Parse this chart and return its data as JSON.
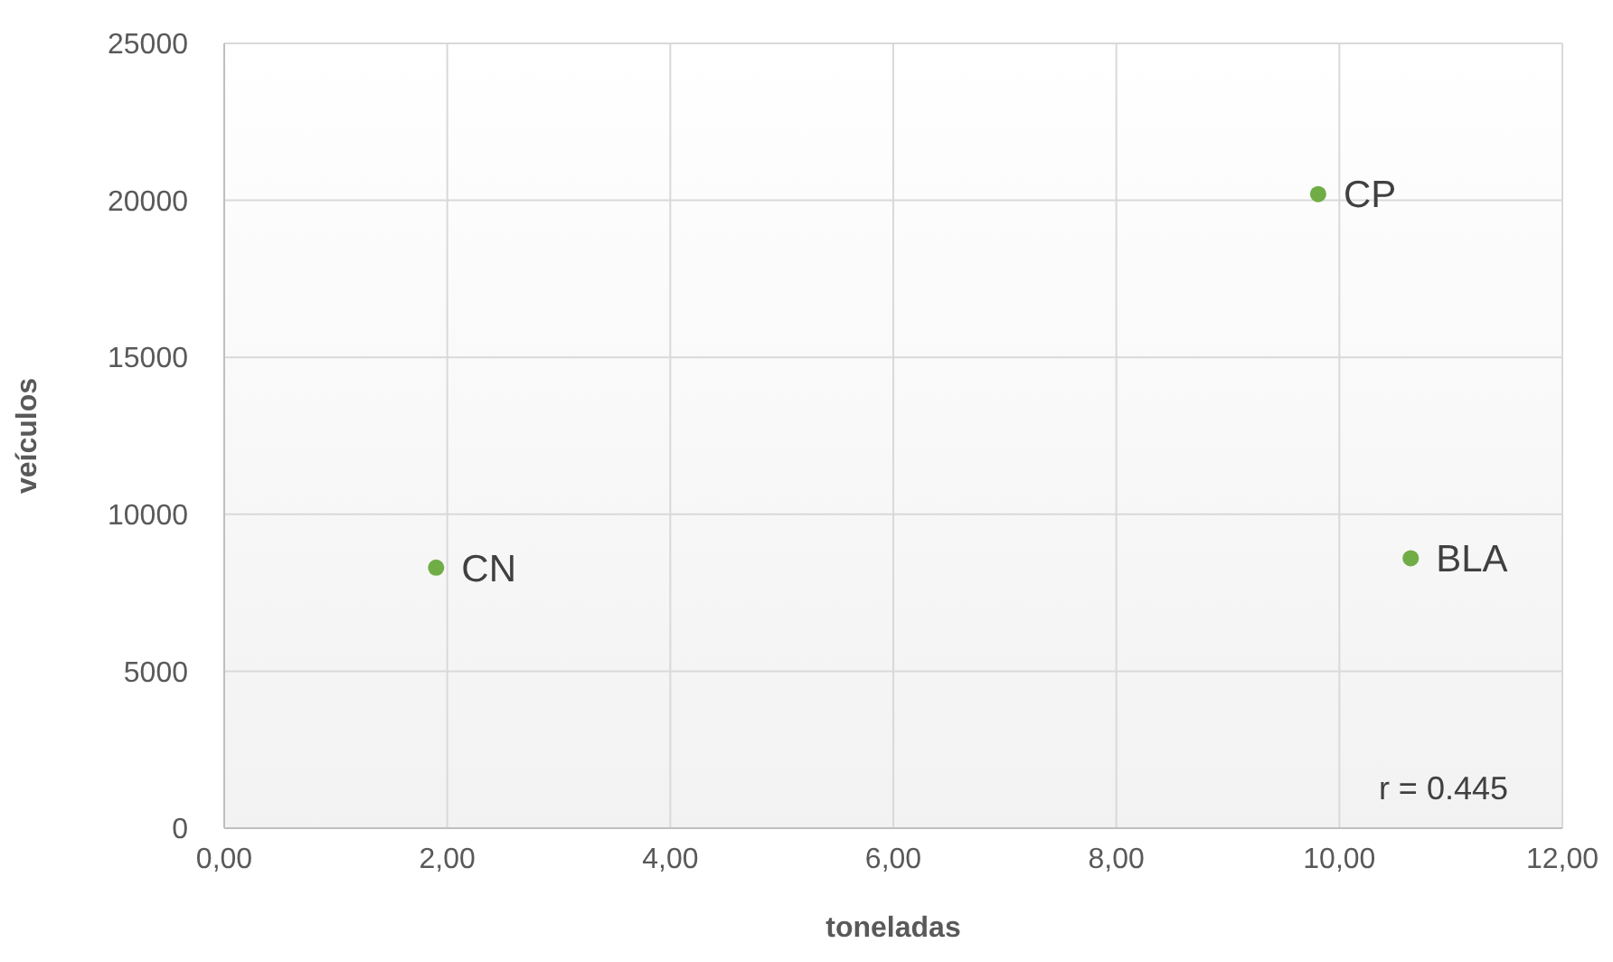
{
  "chart_data": {
    "type": "scatter",
    "xlabel": "toneladas",
    "ylabel": "veículos",
    "x": [
      1.9,
      9.81,
      10.64
    ],
    "series": [
      {
        "color": "#70ad47",
        "values": [
          8300,
          20200,
          8600
        ]
      }
    ],
    "xlim": [
      0,
      12
    ],
    "xticks": [
      {
        "value": 0,
        "label": "0,00"
      },
      {
        "value": 2,
        "label": "2,00"
      },
      {
        "value": 4,
        "label": "4,00"
      },
      {
        "value": 6,
        "label": "6,00"
      },
      {
        "value": 8,
        "label": "8,00"
      },
      {
        "value": 10,
        "label": "10,00"
      },
      {
        "value": 12,
        "label": "12,00"
      }
    ],
    "ylim": [
      0,
      25000
    ],
    "yticks": [
      0,
      5000,
      10000,
      15000,
      20000,
      25000
    ],
    "grid": true,
    "marker": "circle",
    "annotations": [
      {
        "text": "CN",
        "x": 1.9,
        "y": 8300
      },
      {
        "text": "CP",
        "x": 9.81,
        "y": 20200
      },
      {
        "text": "BLA",
        "x": 10.64,
        "y": 8600
      },
      "r = 0.445"
    ]
  }
}
